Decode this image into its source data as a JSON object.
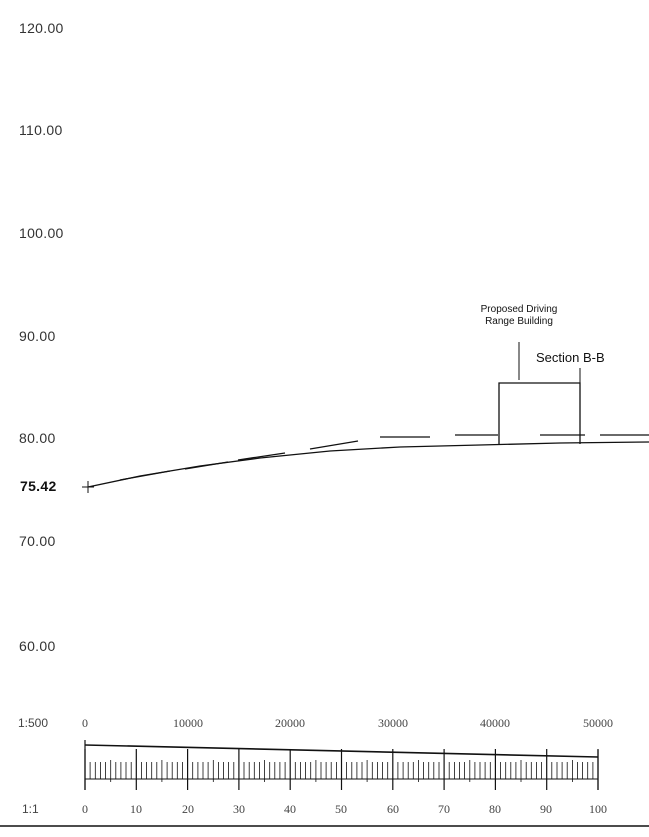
{
  "elevations": [
    "120.00",
    "110.00",
    "100.00",
    "90.00",
    "80.00",
    "75.42",
    "70.00",
    "60.00"
  ],
  "annotations": {
    "building_line1": "Proposed Driving",
    "building_line2": "Range Building",
    "section": "Section B-B"
  },
  "scale_bar": {
    "upper_ratio": "1:500",
    "upper_labels": [
      "0",
      "10000",
      "20000",
      "30000",
      "40000",
      "50000"
    ],
    "lower_ratio": "1:1",
    "lower_labels": [
      "0",
      "10",
      "20",
      "30",
      "40",
      "50",
      "60",
      "70",
      "80",
      "90",
      "100"
    ]
  }
}
